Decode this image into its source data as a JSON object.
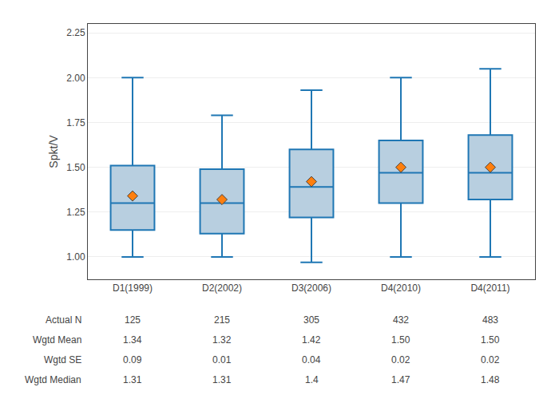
{
  "chart_data": {
    "type": "box",
    "categories": [
      "D1(1999)",
      "D2(2002)",
      "D3(2006)",
      "D4(2010)",
      "D4(2011)"
    ],
    "boxes": [
      {
        "q1": 1.15,
        "median": 1.3,
        "q3": 1.51,
        "whislo": 1.0,
        "whishi": 2.0,
        "mean": 1.34
      },
      {
        "q1": 1.13,
        "median": 1.3,
        "q3": 1.49,
        "whislo": 1.0,
        "whishi": 1.79,
        "mean": 1.32
      },
      {
        "q1": 1.22,
        "median": 1.39,
        "q3": 1.6,
        "whislo": 0.97,
        "whishi": 1.93,
        "mean": 1.42
      },
      {
        "q1": 1.3,
        "median": 1.47,
        "q3": 1.65,
        "whislo": 1.0,
        "whishi": 2.0,
        "mean": 1.5
      },
      {
        "q1": 1.32,
        "median": 1.47,
        "q3": 1.68,
        "whislo": 1.0,
        "whishi": 2.05,
        "mean": 1.5
      }
    ],
    "marker": "diamond",
    "color": "#b8cfe0",
    "ylabel": "Spkt/V",
    "ylim": [
      0.875,
      2.3
    ],
    "yticks": [
      {
        "value": 1.0,
        "label": "1.00"
      },
      1.25,
      {
        "value": 1.5,
        "label": "1.50"
      },
      1.75,
      {
        "value": 2.0,
        "label": "2.00"
      },
      2.25
    ],
    "grid": true,
    "table_rows": [
      {
        "label": "Actual N",
        "values": [
          "125",
          "215",
          "305",
          "432",
          "483"
        ]
      },
      {
        "label": "Wgtd Mean",
        "values": [
          "1.34",
          "1.32",
          "1.42",
          "1.50",
          "1.50"
        ]
      },
      {
        "label": "Wgtd SE",
        "values": [
          "0.09",
          "0.01",
          "0.04",
          "0.02",
          "0.02"
        ]
      },
      {
        "label": "Wgtd Median",
        "values": [
          "1.31",
          "1.31",
          "1.4",
          "1.47",
          "1.48"
        ]
      }
    ]
  }
}
